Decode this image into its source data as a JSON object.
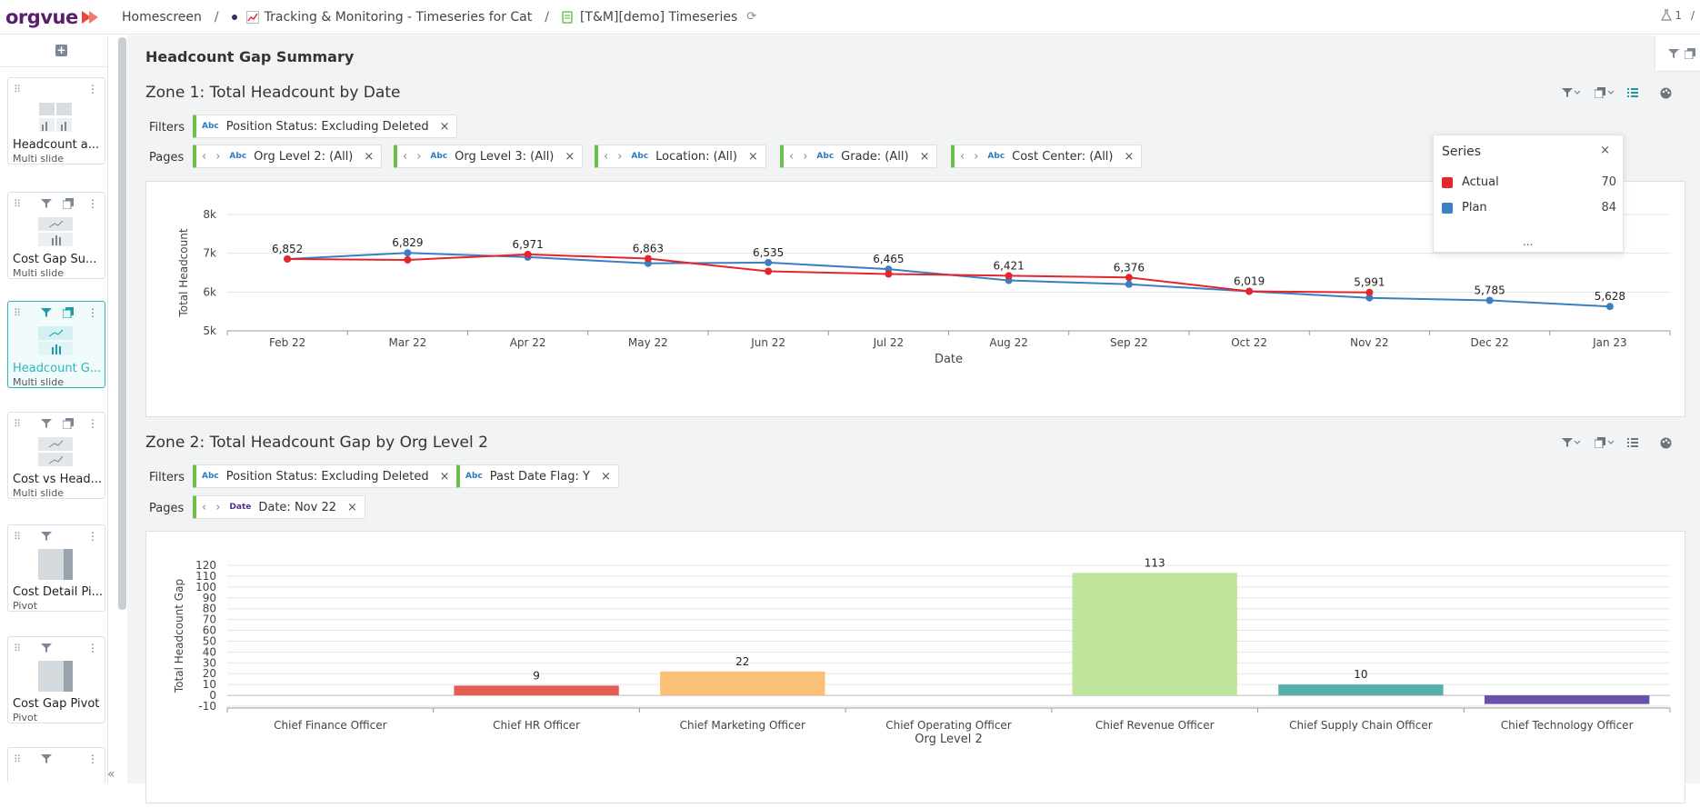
{
  "app": {
    "logo": "orgvue",
    "breadcrumbs": [
      {
        "label": "Homescreen"
      },
      {
        "label": "Tracking & Monitoring - Timeseries for Cat"
      },
      {
        "label": "[T&M][demo] Timeseries"
      }
    ],
    "user_count": "1"
  },
  "sidebar": {
    "add_label": "+",
    "cards": [
      {
        "title": "Headcount a...",
        "type": "Multi slide"
      },
      {
        "title": "Cost Gap Su...",
        "type": "Multi slide"
      },
      {
        "title": "Headcount G...",
        "type": "Multi slide"
      },
      {
        "title": "Cost vs Head...",
        "type": "Multi slide"
      },
      {
        "title": "Cost Detail Pi...",
        "type": "Pivot"
      },
      {
        "title": "Cost Gap Pivot",
        "type": "Pivot"
      }
    ],
    "collapse_label": "«"
  },
  "page": {
    "title": "Headcount Gap Summary"
  },
  "zone1": {
    "title": "Zone 1: Total Headcount by Date",
    "filters_label": "Filters",
    "pages_label": "Pages",
    "filters": [
      {
        "tag": "Abc",
        "label": "Position Status: Excluding Deleted"
      }
    ],
    "pages": [
      {
        "tag": "Abc",
        "label": "Org Level 2: (All)"
      },
      {
        "tag": "Abc",
        "label": "Org Level 3: (All)"
      },
      {
        "tag": "Abc",
        "label": "Location: (All)"
      },
      {
        "tag": "Abc",
        "label": "Grade: (All)"
      },
      {
        "tag": "Abc",
        "label": "Cost Center: (All)"
      }
    ]
  },
  "zone2": {
    "title": "Zone 2: Total Headcount Gap by Org Level 2",
    "filters_label": "Filters",
    "pages_label": "Pages",
    "filters": [
      {
        "tag": "Abc",
        "label": "Position Status: Excluding Deleted"
      },
      {
        "tag": "Abc",
        "label": "Past Date Flag: Y"
      }
    ],
    "pages": [
      {
        "tag": "Date",
        "label": "Date: Nov 22"
      }
    ]
  },
  "series_popup": {
    "title": "Series",
    "close": "×",
    "items": [
      {
        "name": "Actual",
        "count": "70",
        "color": "#e3262c"
      },
      {
        "name": "Plan",
        "count": "84",
        "color": "#3a7fc1"
      }
    ],
    "more": "..."
  },
  "chart_data": [
    {
      "type": "line",
      "xlabel": "Date",
      "ylabel": "Total Headcount",
      "ylim": [
        5000,
        8000
      ],
      "yticks": [
        "5k",
        "6k",
        "7k",
        "8k"
      ],
      "categories": [
        "Feb 22",
        "Mar 22",
        "Apr 22",
        "May 22",
        "Jun 22",
        "Jul 22",
        "Aug 22",
        "Sep 22",
        "Oct 22",
        "Nov 22",
        "Dec 22",
        "Jan 23"
      ],
      "grid": true,
      "series": [
        {
          "name": "Actual",
          "color": "#e3262c",
          "values": [
            6852,
            6829,
            6971,
            6863,
            6535,
            6465,
            6421,
            6376,
            6019,
            5991,
            null,
            null
          ]
        },
        {
          "name": "Plan",
          "color": "#3a7fc1",
          "values": [
            6852,
            7010,
            6900,
            6740,
            6760,
            6590,
            6300,
            6200,
            6019,
            5850,
            5785,
            5628
          ]
        }
      ],
      "data_labels": [
        "6,852",
        "6,829",
        "6,971",
        "6,863",
        "6,535",
        "6,465",
        "6,421",
        "6,376",
        "6,019",
        "5,991",
        "5,785",
        "5,628"
      ]
    },
    {
      "type": "bar",
      "xlabel": "Org Level 2",
      "ylabel": "Total Headcount Gap",
      "ylim": [
        -10,
        120
      ],
      "yticks": [
        "-10",
        "0",
        "10",
        "20",
        "30",
        "40",
        "50",
        "60",
        "70",
        "80",
        "90",
        "100",
        "110",
        "120"
      ],
      "grid": true,
      "categories": [
        "Chief Finance Officer",
        "Chief HR Officer",
        "Chief Marketing Officer",
        "Chief Operating Officer",
        "Chief Revenue Officer",
        "Chief Supply Chain Officer",
        "Chief Technology Officer"
      ],
      "values": [
        0,
        9,
        22,
        0,
        113,
        10,
        -8
      ],
      "labels": [
        "",
        "9",
        "22",
        "",
        "113",
        "10",
        ""
      ],
      "colors": [
        "#e45d50",
        "#e45d50",
        "#fbbf76",
        "#bfe59d",
        "#bfe59d",
        "#57b0aa",
        "#6a4fad"
      ]
    }
  ]
}
